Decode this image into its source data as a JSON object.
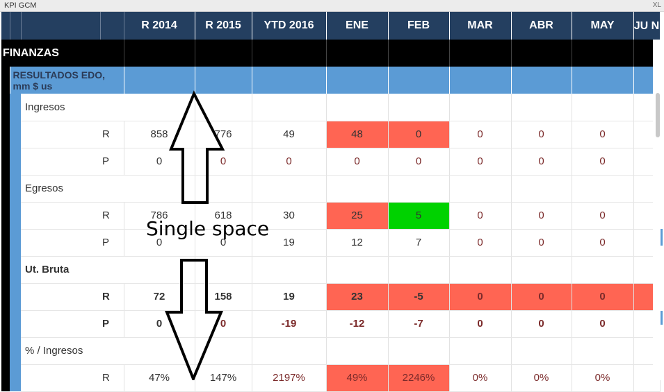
{
  "window": {
    "title": "KPI GCM",
    "corner": "XL"
  },
  "columns": [
    "R 2014",
    "R 2015",
    "YTD 2016",
    "ENE",
    "FEB",
    "MAR",
    "ABR",
    "MAY",
    "JU N"
  ],
  "section": "FINANZAS",
  "subsection": "RESULTADOS EDO, mm $ us",
  "groups": [
    {
      "name": "Ingresos",
      "bold": false,
      "rows": [
        {
          "type": "R",
          "values": [
            "858",
            "776",
            "49",
            "48",
            "0",
            "0",
            "0",
            "0",
            ""
          ]
        },
        {
          "type": "P",
          "values": [
            "0",
            "0",
            "0",
            "0",
            "0",
            "0",
            "0",
            "0",
            ""
          ]
        }
      ]
    },
    {
      "name": "Egresos",
      "bold": false,
      "rows": [
        {
          "type": "R",
          "values": [
            "786",
            "618",
            "30",
            "25",
            "5",
            "0",
            "0",
            "0",
            ""
          ]
        },
        {
          "type": "P",
          "values": [
            "0",
            "0",
            "19",
            "12",
            "7",
            "0",
            "0",
            "0",
            ""
          ]
        }
      ]
    },
    {
      "name": "Ut. Bruta",
      "bold": true,
      "rows": [
        {
          "type": "R",
          "values": [
            "72",
            "158",
            "19",
            "23",
            "-5",
            "0",
            "0",
            "0",
            ""
          ]
        },
        {
          "type": "P",
          "values": [
            "0",
            "0",
            "-19",
            "-12",
            "-7",
            "0",
            "0",
            "0",
            ""
          ]
        }
      ]
    },
    {
      "name": "% / Ingresos",
      "bold": false,
      "rows": [
        {
          "type": "R",
          "values": [
            "47%",
            "147%",
            "2197%",
            "49%",
            "2246%",
            "0%",
            "0%",
            "0%",
            ""
          ]
        }
      ]
    }
  ],
  "annotation": {
    "text": "Single space"
  },
  "colors": {
    "header": "#243f60",
    "section": "#000000",
    "subsection": "#5b9bd5",
    "bad": "#ff6553",
    "good": "#00d200"
  }
}
